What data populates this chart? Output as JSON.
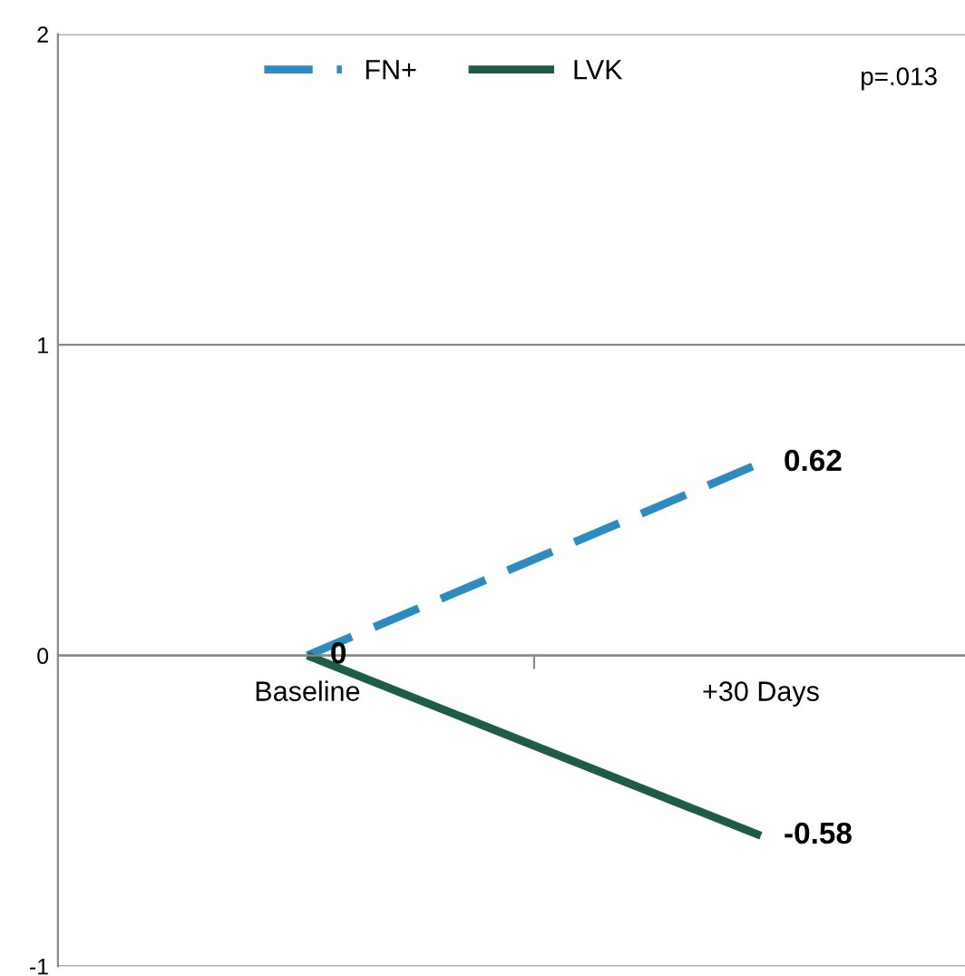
{
  "chart_data": {
    "type": "line",
    "categories": [
      "Baseline",
      "+30 Days"
    ],
    "series": [
      {
        "name": "FN+",
        "color": "#2e8bc0",
        "values": [
          0,
          0.62
        ],
        "line_style": "dashed",
        "value_labels": [
          null,
          "0.62"
        ]
      },
      {
        "name": "LVK",
        "color": "#1e5c4a",
        "values": [
          0,
          -0.58
        ],
        "line_style": "solid",
        "value_labels": [
          "0",
          "-0.58"
        ]
      }
    ],
    "ylim": [
      -1,
      2
    ],
    "yticks": [
      -1,
      0,
      1,
      2
    ],
    "grid": "y",
    "legend": "top left",
    "marker": "none",
    "annotations": [
      "p=.013"
    ]
  }
}
